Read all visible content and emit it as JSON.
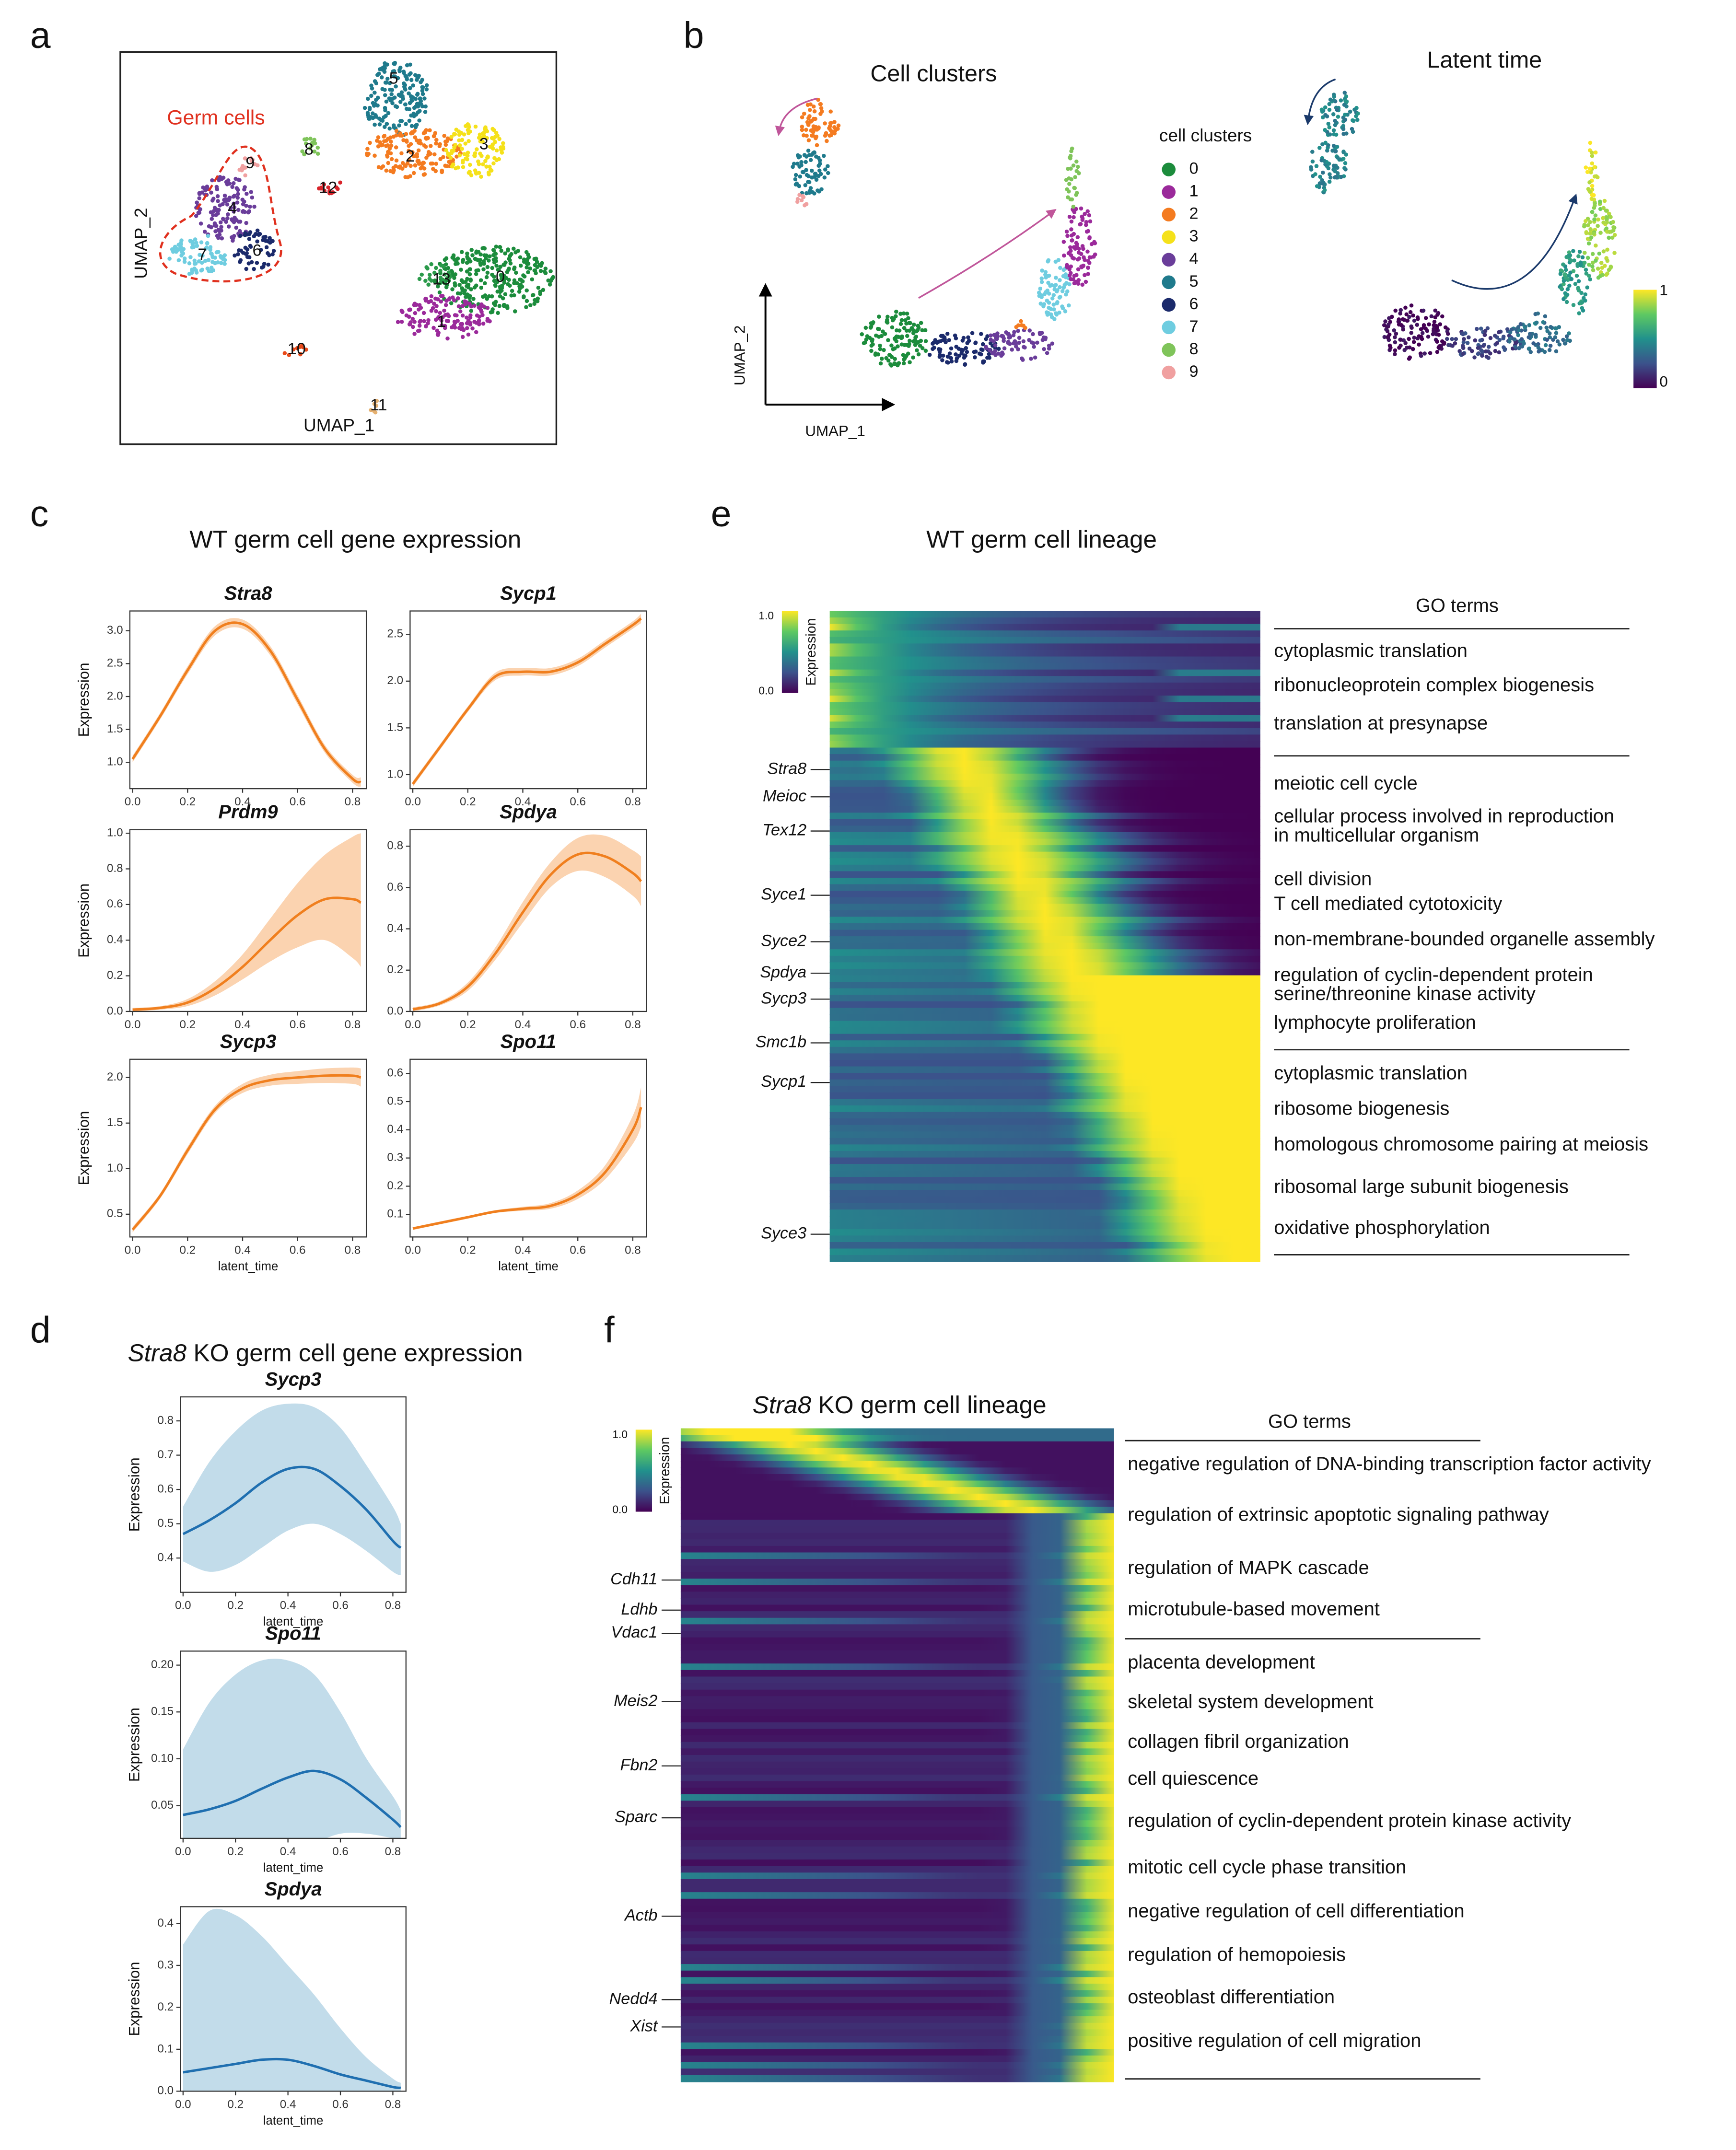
{
  "panel_labels": [
    "a",
    "b",
    "c",
    "d",
    "e",
    "f"
  ],
  "panel_a": {
    "annotation": "Germ cells",
    "xlabel": "UMAP_1",
    "ylabel": "UMAP_2",
    "clusters": [
      {
        "label": "0",
        "color": "#1c8c3c"
      },
      {
        "label": "1",
        "color": "#9b2a9b"
      },
      {
        "label": "2",
        "color": "#f47b20"
      },
      {
        "label": "3",
        "color": "#f5e11a"
      },
      {
        "label": "4",
        "color": "#6a3d9a"
      },
      {
        "label": "5",
        "color": "#1f7a8c"
      },
      {
        "label": "6",
        "color": "#1b2a6b"
      },
      {
        "label": "7",
        "color": "#6fcde0"
      },
      {
        "label": "8",
        "color": "#7fc45a"
      },
      {
        "label": "9",
        "color": "#f0a0a0"
      },
      {
        "label": "10",
        "color": "#e84a1a"
      },
      {
        "label": "11",
        "color": "#e5b070"
      },
      {
        "label": "12",
        "color": "#d8232a"
      },
      {
        "label": "13",
        "color": "#2a9a4a"
      }
    ]
  },
  "panel_b": {
    "title_left": "Cell clusters",
    "title_right": "Latent time",
    "legend_title": "cell clusters",
    "legend": [
      {
        "name": "0",
        "color": "#1c8c3c"
      },
      {
        "name": "1",
        "color": "#9b2a9b"
      },
      {
        "name": "2",
        "color": "#f47b20"
      },
      {
        "name": "3",
        "color": "#f5e11a"
      },
      {
        "name": "4",
        "color": "#6a3d9a"
      },
      {
        "name": "5",
        "color": "#1f7a8c"
      },
      {
        "name": "6",
        "color": "#1b2a6b"
      },
      {
        "name": "7",
        "color": "#6fcde0"
      },
      {
        "name": "8",
        "color": "#7fc45a"
      },
      {
        "name": "9",
        "color": "#f0a0a0"
      }
    ],
    "xlabel": "UMAP_1",
    "ylabel": "UMAP_2",
    "colorbar_max": "1",
    "colorbar_min": "0"
  },
  "panel_c_title": "WT germ cell gene expression",
  "panel_d_title": {
    "gene": "Stra8",
    "text": "KO germ cell gene expression"
  },
  "chart_data": [
    {
      "type": "line",
      "title": "Stra8",
      "ylabel": "Expression",
      "x": [
        0,
        0.1,
        0.2,
        0.3,
        0.4,
        0.5,
        0.6,
        0.7,
        0.8,
        0.83
      ],
      "xlim": [
        -0.01,
        0.85
      ],
      "xticks": [
        {
          "value": 0,
          "label": "0.0"
        },
        0.2,
        0.4,
        0.6,
        0.8
      ],
      "ylim": [
        0.6,
        3.3
      ],
      "yticks": [
        {
          "value": 1,
          "label": "1.0"
        },
        1.5,
        {
          "value": 2,
          "label": "2.0"
        },
        2.5,
        {
          "value": 3,
          "label": "3.0"
        }
      ],
      "series": [
        {
          "color": "#f07f1e",
          "band_color": "#fbd3b0",
          "values": [
            1.05,
            1.7,
            2.4,
            3.0,
            3.1,
            2.7,
            1.95,
            1.2,
            0.75,
            0.7
          ],
          "lower": [
            1.0,
            1.65,
            2.34,
            2.93,
            3.03,
            2.63,
            1.88,
            1.14,
            0.69,
            0.63
          ],
          "upper": [
            1.1,
            1.75,
            2.46,
            3.07,
            3.17,
            2.77,
            2.02,
            1.26,
            0.81,
            0.77
          ]
        }
      ]
    },
    {
      "type": "line",
      "title": "Sycp1",
      "x": [
        0,
        0.1,
        0.2,
        0.3,
        0.4,
        0.5,
        0.6,
        0.7,
        0.8,
        0.83
      ],
      "xlim": [
        -0.01,
        0.85
      ],
      "xticks": [
        {
          "value": 0,
          "label": "0.0"
        },
        0.2,
        0.4,
        0.6,
        0.8
      ],
      "ylim": [
        0.85,
        2.75
      ],
      "yticks": [
        {
          "value": 1,
          "label": "1.0"
        },
        1.5,
        {
          "value": 2,
          "label": "2.0"
        },
        2.5
      ],
      "series": [
        {
          "color": "#f07f1e",
          "band_color": "#fbd3b0",
          "values": [
            0.9,
            1.3,
            1.7,
            2.05,
            2.1,
            2.1,
            2.2,
            2.4,
            2.6,
            2.67
          ],
          "lower": [
            0.87,
            1.27,
            1.67,
            2.01,
            2.06,
            2.06,
            2.16,
            2.36,
            2.56,
            2.62
          ],
          "upper": [
            0.93,
            1.33,
            1.73,
            2.09,
            2.14,
            2.14,
            2.24,
            2.44,
            2.64,
            2.72
          ]
        }
      ]
    },
    {
      "type": "line",
      "title": "Prdm9",
      "ylabel": "Expression",
      "x": [
        0,
        0.1,
        0.2,
        0.3,
        0.4,
        0.5,
        0.6,
        0.7,
        0.8,
        0.83
      ],
      "xlim": [
        -0.01,
        0.85
      ],
      "xticks": [
        {
          "value": 0,
          "label": "0.0"
        },
        0.2,
        0.4,
        0.6,
        0.8
      ],
      "ylim": [
        0,
        1.02
      ],
      "yticks": [
        {
          "value": 0,
          "label": "0.0"
        },
        0.2,
        0.4,
        0.6,
        0.8,
        {
          "value": 1,
          "label": "1.0"
        }
      ],
      "series": [
        {
          "color": "#f07f1e",
          "band_color": "#fbd3b0",
          "values": [
            0.01,
            0.02,
            0.05,
            0.13,
            0.25,
            0.4,
            0.54,
            0.63,
            0.63,
            0.61
          ],
          "lower": [
            0,
            0.01,
            0.03,
            0.09,
            0.18,
            0.28,
            0.36,
            0.4,
            0.3,
            0.25
          ],
          "upper": [
            0.02,
            0.03,
            0.07,
            0.17,
            0.32,
            0.52,
            0.72,
            0.88,
            0.98,
            1.0
          ]
        }
      ]
    },
    {
      "type": "line",
      "title": "Spdya",
      "x": [
        0,
        0.1,
        0.2,
        0.3,
        0.4,
        0.5,
        0.6,
        0.7,
        0.8,
        0.83
      ],
      "xlim": [
        -0.01,
        0.85
      ],
      "xticks": [
        {
          "value": 0,
          "label": "0.0"
        },
        0.2,
        0.4,
        0.6,
        0.8
      ],
      "ylim": [
        0,
        0.88
      ],
      "yticks": [
        {
          "value": 0,
          "label": "0.0"
        },
        0.2,
        0.4,
        0.6,
        0.8
      ],
      "series": [
        {
          "color": "#f07f1e",
          "band_color": "#fbd3b0",
          "values": [
            0.01,
            0.04,
            0.12,
            0.28,
            0.48,
            0.66,
            0.76,
            0.75,
            0.67,
            0.63
          ],
          "lower": [
            0,
            0.03,
            0.1,
            0.25,
            0.43,
            0.6,
            0.68,
            0.65,
            0.56,
            0.51
          ],
          "upper": [
            0.02,
            0.05,
            0.14,
            0.31,
            0.53,
            0.72,
            0.84,
            0.85,
            0.78,
            0.75
          ]
        }
      ]
    },
    {
      "type": "line",
      "title": "Sycp3",
      "ylabel": "Expression",
      "xlabel": "latent_time",
      "x": [
        0,
        0.1,
        0.2,
        0.3,
        0.4,
        0.5,
        0.6,
        0.7,
        0.8,
        0.83
      ],
      "xlim": [
        -0.01,
        0.85
      ],
      "xticks": [
        {
          "value": 0,
          "label": "0.0"
        },
        0.2,
        0.4,
        0.6,
        0.8
      ],
      "ylim": [
        0.25,
        2.2
      ],
      "yticks": [
        0.5,
        {
          "value": 1,
          "label": "1.0"
        },
        1.5,
        {
          "value": 2,
          "label": "2.0"
        }
      ],
      "series": [
        {
          "color": "#f07f1e",
          "band_color": "#fbd3b0",
          "values": [
            0.33,
            0.7,
            1.2,
            1.65,
            1.88,
            1.97,
            2.0,
            2.02,
            2.02,
            2.0
          ],
          "lower": [
            0.3,
            0.67,
            1.16,
            1.61,
            1.83,
            1.91,
            1.93,
            1.94,
            1.93,
            1.9
          ],
          "upper": [
            0.36,
            0.73,
            1.24,
            1.69,
            1.93,
            2.03,
            2.07,
            2.1,
            2.11,
            2.1
          ]
        }
      ]
    },
    {
      "type": "line",
      "title": "Spo11",
      "xlabel": "latent_time",
      "x": [
        0,
        0.1,
        0.2,
        0.3,
        0.4,
        0.5,
        0.6,
        0.7,
        0.8,
        0.83
      ],
      "xlim": [
        -0.01,
        0.85
      ],
      "xticks": [
        {
          "value": 0,
          "label": "0.0"
        },
        0.2,
        0.4,
        0.6,
        0.8
      ],
      "ylim": [
        0.02,
        0.65
      ],
      "yticks": [
        0.1,
        0.2,
        0.3,
        0.4,
        0.5,
        0.6
      ],
      "series": [
        {
          "color": "#f07f1e",
          "band_color": "#fbd3b0",
          "values": [
            0.05,
            0.07,
            0.09,
            0.11,
            0.12,
            0.13,
            0.17,
            0.25,
            0.4,
            0.48
          ],
          "lower": [
            0.045,
            0.065,
            0.085,
            0.105,
            0.113,
            0.12,
            0.155,
            0.225,
            0.35,
            0.41
          ],
          "upper": [
            0.055,
            0.075,
            0.095,
            0.115,
            0.127,
            0.14,
            0.185,
            0.275,
            0.45,
            0.55
          ]
        }
      ]
    },
    {
      "type": "line",
      "title": "Sycp3",
      "ylabel": "Expression",
      "xlabel": "latent_time",
      "x": [
        0,
        0.1,
        0.2,
        0.3,
        0.4,
        0.5,
        0.6,
        0.7,
        0.8,
        0.83
      ],
      "xlim": [
        -0.01,
        0.85
      ],
      "xticks": [
        {
          "value": 0,
          "label": "0.0"
        },
        0.2,
        0.4,
        0.6,
        0.8
      ],
      "ylim": [
        0.3,
        0.87
      ],
      "yticks": [
        0.4,
        0.5,
        0.6,
        0.7,
        0.8
      ],
      "series": [
        {
          "color": "#1f6fb0",
          "band_color": "#c2dcea",
          "values": [
            0.47,
            0.51,
            0.56,
            0.62,
            0.66,
            0.66,
            0.61,
            0.54,
            0.45,
            0.43
          ],
          "lower": [
            0.39,
            0.36,
            0.38,
            0.43,
            0.48,
            0.5,
            0.47,
            0.42,
            0.36,
            0.35
          ],
          "upper": [
            0.55,
            0.68,
            0.77,
            0.83,
            0.85,
            0.84,
            0.78,
            0.67,
            0.55,
            0.5
          ]
        }
      ]
    },
    {
      "type": "line",
      "title": "Spo11",
      "ylabel": "Expression",
      "xlabel": "latent_time",
      "x": [
        0,
        0.1,
        0.2,
        0.3,
        0.4,
        0.5,
        0.6,
        0.7,
        0.8,
        0.83
      ],
      "xlim": [
        -0.01,
        0.85
      ],
      "xticks": [
        {
          "value": 0,
          "label": "0.0"
        },
        0.2,
        0.4,
        0.6,
        0.8
      ],
      "ylim": [
        0.015,
        0.215
      ],
      "yticks": [
        0.05,
        {
          "value": 0.1,
          "label": "0.10"
        },
        0.15,
        {
          "value": 0.2,
          "label": "0.20"
        }
      ],
      "series": [
        {
          "color": "#1f6fb0",
          "band_color": "#c2dcea",
          "values": [
            0.04,
            0.046,
            0.055,
            0.068,
            0.08,
            0.087,
            0.078,
            0.058,
            0.035,
            0.027
          ],
          "lower": [
            0,
            0,
            0,
            0,
            0,
            0.01,
            0.02,
            0.02,
            0.015,
            0.012
          ],
          "upper": [
            0.11,
            0.16,
            0.19,
            0.205,
            0.205,
            0.19,
            0.15,
            0.1,
            0.06,
            0.045
          ]
        }
      ]
    },
    {
      "type": "line",
      "title": "Spdya",
      "ylabel": "Expression",
      "xlabel": "latent_time",
      "x": [
        0,
        0.1,
        0.2,
        0.3,
        0.4,
        0.5,
        0.6,
        0.7,
        0.8,
        0.83
      ],
      "xlim": [
        -0.01,
        0.85
      ],
      "xticks": [
        {
          "value": 0,
          "label": "0.0"
        },
        0.2,
        0.4,
        0.6,
        0.8
      ],
      "ylim": [
        0,
        0.44
      ],
      "yticks": [
        {
          "value": 0,
          "label": "0.0"
        },
        0.1,
        0.2,
        0.3,
        0.4
      ],
      "series": [
        {
          "color": "#1f6fb0",
          "band_color": "#c2dcea",
          "values": [
            0.045,
            0.055,
            0.065,
            0.075,
            0.075,
            0.06,
            0.04,
            0.025,
            0.01,
            0.008
          ],
          "lower": [
            0,
            0,
            0,
            0,
            0,
            0,
            0,
            0,
            0,
            0
          ],
          "upper": [
            0.35,
            0.43,
            0.42,
            0.37,
            0.3,
            0.23,
            0.15,
            0.08,
            0.03,
            0.02
          ]
        }
      ]
    }
  ],
  "heatmap_e": {
    "title": "WT germ cell lineage",
    "colorbar_max": "1.0",
    "colorbar_min": "0.0",
    "colorbar_label": "Expression",
    "genes": [
      "Stra8",
      "Meioc",
      "Tex12",
      "Syce1",
      "Syce2",
      "Spdya",
      "Sycp3",
      "Smc1b",
      "Sycp1",
      "Syce3"
    ],
    "go_header": "GO terms",
    "go_terms": [
      "cytoplasmic translation",
      "ribonucleoprotein complex biogenesis",
      "translation at presynapse",
      "meiotic cell cycle",
      "cellular process involved in reproduction",
      "in multicellular organism",
      "cell division",
      "T cell mediated cytotoxicity",
      "non-membrane-bounded organelle assembly",
      "regulation of cyclin-dependent protein",
      "serine/threonine kinase activity",
      "lymphocyte proliferation",
      "cytoplasmic translation",
      "ribosome biogenesis",
      "homologous chromosome pairing at meiosis",
      "ribosomal large subunit biogenesis",
      "oxidative phosphorylation"
    ]
  },
  "heatmap_f": {
    "title": {
      "gene": "Stra8",
      "text": "KO germ cell lineage"
    },
    "colorbar_max": "1.0",
    "colorbar_min": "0.0",
    "colorbar_label": "Expression",
    "genes": [
      "Cdh11",
      "Ldhb",
      "Vdac1",
      "Meis2",
      "Fbn2",
      "Sparc",
      "Actb",
      "Nedd4",
      "Xist"
    ],
    "go_header": "GO terms",
    "go_terms": [
      "negative regulation of DNA-binding transcription factor activity",
      "regulation of extrinsic apoptotic signaling pathway",
      "regulation of MAPK cascade",
      "microtubule-based movement",
      "placenta development",
      "skeletal system development",
      "collagen fibril organization",
      "cell quiescence",
      "regulation of cyclin-dependent protein kinase activity",
      "mitotic cell cycle phase transition",
      "negative regulation of cell differentiation",
      "regulation of hemopoiesis",
      "osteoblast differentiation",
      "positive regulation of cell migration"
    ]
  }
}
